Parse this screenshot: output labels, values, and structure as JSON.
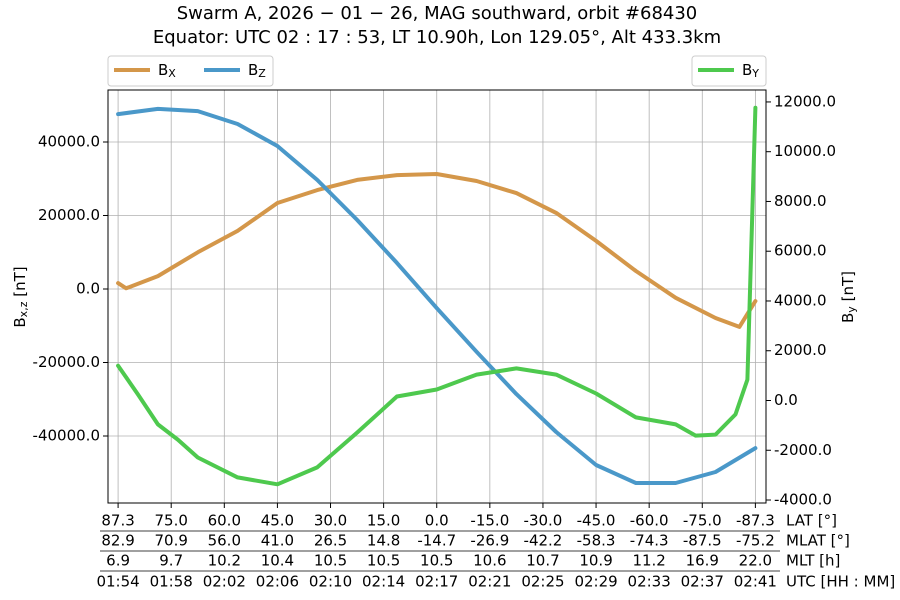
{
  "chart_data": {
    "type": "line",
    "title": "Swarm A, 2026 − 01 − 26, MAG southward, orbit #68430",
    "subtitle": "Equator: UTC 02 : 17 : 53, LT 10.90h, Lon 129.05°, Alt 433.3km",
    "ylabel": "Bx,z [nT]",
    "y2label": "By [nT]",
    "xlabel": "UTC [HH : MM]",
    "grid": true,
    "xlim": [
      -0.19,
      12.2
    ],
    "xticks": [
      {
        "value": 0,
        "label": "01:54"
      },
      {
        "value": 1,
        "label": "01:58"
      },
      {
        "value": 2,
        "label": "02:02"
      },
      {
        "value": 3,
        "label": "02:06"
      },
      {
        "value": 4,
        "label": "02:10"
      },
      {
        "value": 5,
        "label": "02:14"
      },
      {
        "value": 6,
        "label": "02:17"
      },
      {
        "value": 7,
        "label": "02:21"
      },
      {
        "value": 8,
        "label": "02:25"
      },
      {
        "value": 9,
        "label": "02:29"
      },
      {
        "value": 10,
        "label": "02:33"
      },
      {
        "value": 11,
        "label": "02:37"
      },
      {
        "value": 12,
        "label": "02:41"
      }
    ],
    "x_tick_rows": [
      {
        "name": "LAT [°]",
        "labels": [
          "87.3",
          "75.0",
          "60.0",
          "45.0",
          "30.0",
          "15.0",
          "0.0",
          "-15.0",
          "-30.0",
          "-45.0",
          "-60.0",
          "-75.0",
          "-87.3"
        ]
      },
      {
        "name": "MLAT [°]",
        "labels": [
          "82.9",
          "70.9",
          "56.0",
          "41.0",
          "26.5",
          "14.8",
          "-14.7",
          "-26.9",
          "-42.2",
          "-58.3",
          "-74.3",
          "-87.5",
          "-75.2"
        ]
      },
      {
        "name": "MLT [h]",
        "labels": [
          "6.9",
          "9.7",
          "10.2",
          "10.4",
          "10.5",
          "10.5",
          "10.5",
          "10.6",
          "10.7",
          "10.9",
          "11.2",
          "16.9",
          "22.0"
        ]
      }
    ],
    "ylim": [
      -58230,
      54150
    ],
    "yticks": [
      {
        "value": -40000,
        "label": "-40000.0"
      },
      {
        "value": -20000,
        "label": "-20000.0"
      },
      {
        "value": 0,
        "label": "0.0"
      },
      {
        "value": 20000,
        "label": "20000.0"
      },
      {
        "value": 40000,
        "label": "40000.0"
      }
    ],
    "y2lim": [
      -4120,
      12480
    ],
    "y2ticks": [
      {
        "value": -4000,
        "label": "-4000.0"
      },
      {
        "value": -2000,
        "label": "-2000.0"
      },
      {
        "value": 0,
        "label": "0.0"
      },
      {
        "value": 2000,
        "label": "2000.0"
      },
      {
        "value": 4000,
        "label": "4000.0"
      },
      {
        "value": 6000,
        "label": "6000.0"
      },
      {
        "value": 8000,
        "label": "8000.0"
      },
      {
        "value": 10000,
        "label": "10000.0"
      },
      {
        "value": 12000,
        "label": "12000.0"
      }
    ],
    "series": [
      {
        "name": "BX",
        "color": "#d4974a",
        "x": [
          0,
          0.15,
          0.75,
          1.5,
          2.25,
          3,
          3.75,
          4.5,
          5.25,
          6,
          6.75,
          7.5,
          8.25,
          9,
          9.75,
          10.5,
          11.25,
          11.7,
          12
        ],
        "values": [
          1600,
          200,
          3500,
          10000,
          15800,
          23400,
          26900,
          29700,
          31000,
          31300,
          29400,
          26100,
          20700,
          13100,
          4900,
          -2400,
          -7900,
          -10300,
          -3300
        ]
      },
      {
        "name": "BZ",
        "color": "#4a98c9",
        "x": [
          0,
          0.75,
          1.5,
          2.25,
          3,
          3.75,
          4.5,
          5.25,
          6,
          6.75,
          7.5,
          8.25,
          9,
          9.75,
          10.5,
          11.25,
          12
        ],
        "values": [
          47600,
          49000,
          48400,
          44900,
          38900,
          29700,
          18800,
          7100,
          -5200,
          -17100,
          -28600,
          -38900,
          -47900,
          -52800,
          -52800,
          -49800,
          -43300
        ]
      },
      {
        "name": "BY",
        "color": "#4ec94e",
        "axis": "y2",
        "x": [
          0,
          0.375,
          0.75,
          1.125,
          1.5,
          2.25,
          3,
          3.75,
          4.5,
          5.25,
          6,
          6.75,
          7.5,
          8.25,
          9,
          9.75,
          10.5,
          10.875,
          11.25,
          11.625,
          11.85,
          12
        ],
        "values": [
          1400,
          240,
          -960,
          -1570,
          -2290,
          -3090,
          -3370,
          -2690,
          -1290,
          160,
          440,
          1040,
          1290,
          1040,
          280,
          -680,
          -960,
          -1410,
          -1370,
          -560,
          840,
          11770
        ]
      }
    ]
  }
}
